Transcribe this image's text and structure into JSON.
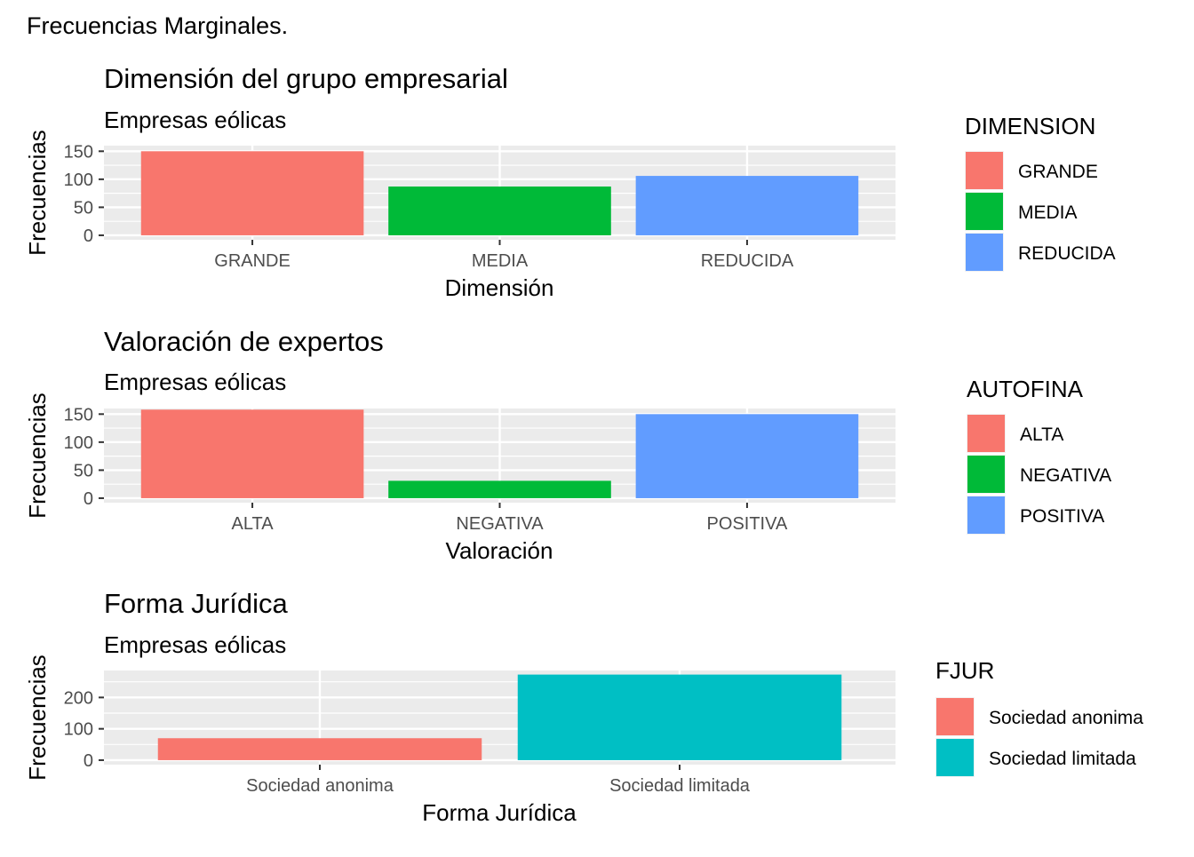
{
  "page_title": "Frecuencias Marginales.",
  "chart_data": [
    {
      "type": "bar",
      "title": "Dimensión del grupo empresarial",
      "subtitle": "Empresas eólicas",
      "xlabel": "Dimensión",
      "ylabel": "Frecuencias",
      "categories": [
        "GRANDE",
        "MEDIA",
        "REDUCIDA"
      ],
      "values": [
        150,
        87,
        106
      ],
      "colors": [
        "#F8766D",
        "#00BA38",
        "#619CFF"
      ],
      "ylim": [
        0,
        160
      ],
      "yticks": [
        0,
        50,
        100,
        150
      ],
      "legend_title": "DIMENSION",
      "legend_labels": [
        "GRANDE",
        "MEDIA",
        "REDUCIDA"
      ],
      "grid": true,
      "legend_position": "right"
    },
    {
      "type": "bar",
      "title": "Valoración de expertos",
      "subtitle": "Empresas eólicas",
      "xlabel": "Valoración",
      "ylabel": "Frecuencias",
      "categories": [
        "ALTA",
        "NEGATIVA",
        "POSITIVA"
      ],
      "values": [
        158,
        31,
        150
      ],
      "colors": [
        "#F8766D",
        "#00BA38",
        "#619CFF"
      ],
      "ylim": [
        0,
        160
      ],
      "yticks": [
        0,
        50,
        100,
        150
      ],
      "legend_title": "AUTOFINA",
      "legend_labels": [
        "ALTA",
        "NEGATIVA",
        "POSITIVA"
      ],
      "grid": true,
      "legend_position": "right"
    },
    {
      "type": "bar",
      "title": "Forma Jurídica",
      "subtitle": "Empresas eólicas",
      "xlabel": "Forma Jurídica",
      "ylabel": "Frecuencias",
      "categories": [
        "Sociedad anonima",
        "Sociedad limitada"
      ],
      "values": [
        70,
        273
      ],
      "colors": [
        "#F8766D",
        "#00BFC4"
      ],
      "ylim": [
        0,
        286
      ],
      "yticks": [
        0,
        100,
        200
      ],
      "legend_title": "FJUR",
      "legend_labels": [
        "Sociedad anonima",
        "Sociedad limitada"
      ],
      "grid": true,
      "legend_position": "right"
    }
  ]
}
